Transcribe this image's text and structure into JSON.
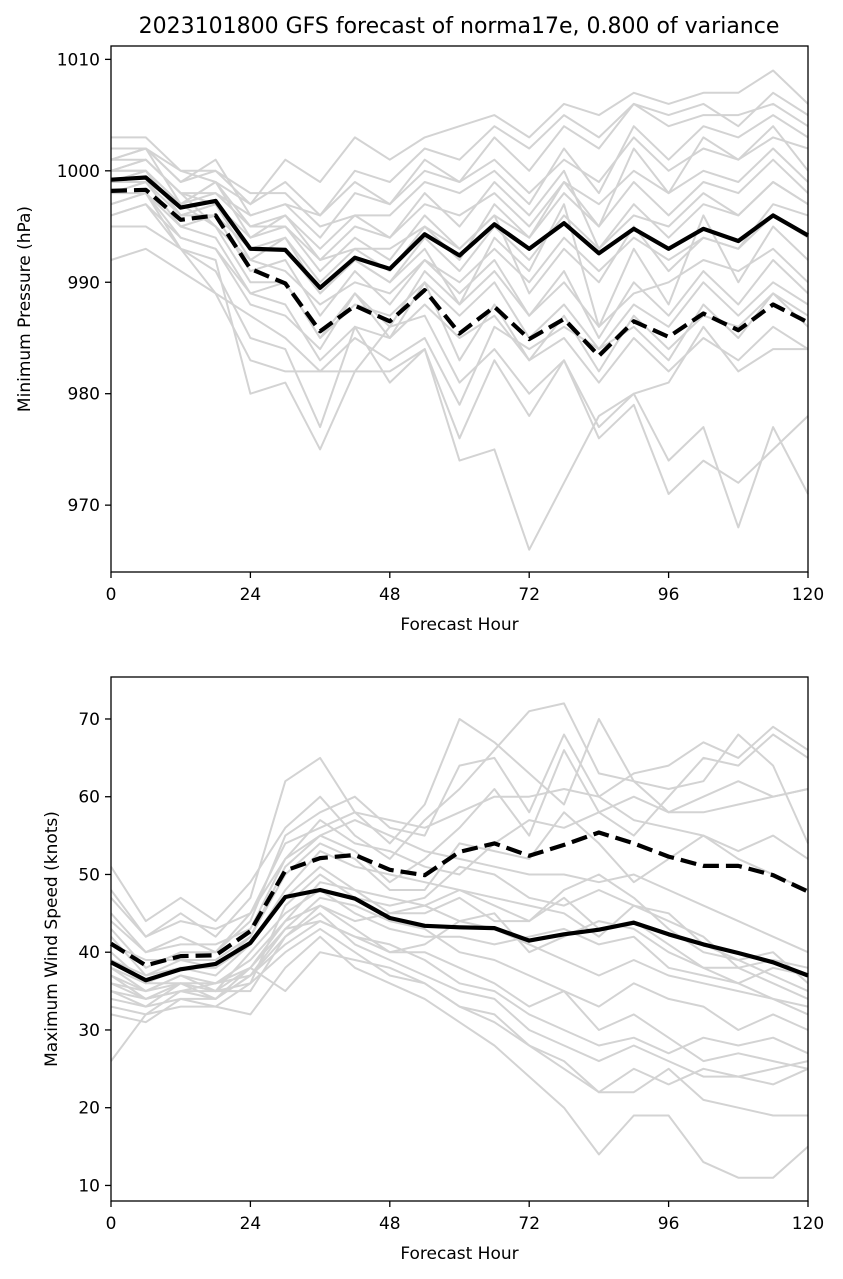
{
  "figure": {
    "title": "2023101800 GFS forecast of norma17e, 0.800 of variance"
  },
  "chart_data": [
    {
      "type": "line",
      "panel": "pressure",
      "title": "2023101800 GFS forecast of norma17e, 0.800 of variance",
      "xlabel": "Forecast Hour",
      "ylabel": "Minimum Pressure (hPa)",
      "xlim": [
        0,
        120
      ],
      "ylim": [
        964,
        1011.2
      ],
      "xticks": [
        0,
        24,
        48,
        72,
        96,
        120
      ],
      "yticks": [
        970,
        980,
        990,
        1000,
        1010
      ],
      "grid": false,
      "x": [
        0,
        6,
        12,
        18,
        24,
        30,
        36,
        42,
        48,
        54,
        60,
        66,
        72,
        78,
        84,
        90,
        96,
        102,
        108,
        114,
        120
      ],
      "ensemble_color": "#d3d3d3",
      "ensemble_members": [
        [
          1003,
          1003,
          1000,
          999,
          997,
          1001,
          999,
          1003,
          1001,
          1003,
          1004,
          1005,
          1003,
          1006,
          1005,
          1007,
          1006,
          1007,
          1007,
          1009,
          1006
        ],
        [
          1002,
          1002,
          999,
          1001,
          996,
          997,
          996,
          999,
          997,
          1000,
          999,
          1001,
          998,
          1001,
          999,
          1003,
          1000,
          1002,
          1001,
          1003,
          1002
        ],
        [
          1001,
          1001,
          998,
          998,
          995,
          995,
          992,
          995,
          994,
          997,
          996,
          998,
          995,
          999,
          997,
          1000,
          998,
          1000,
          999,
          1002,
          999
        ],
        [
          1000,
          1000,
          996,
          997,
          992,
          991,
          988,
          990,
          989,
          992,
          990,
          993,
          990,
          994,
          991,
          994,
          992,
          994,
          993,
          996,
          994
        ],
        [
          999,
          1000,
          997,
          995,
          990,
          990,
          985,
          988,
          987,
          990,
          987,
          990,
          985,
          988,
          984,
          988,
          986,
          990,
          987,
          990,
          988
        ],
        [
          998,
          999,
          995,
          994,
          989,
          988,
          983,
          986,
          985,
          988,
          985,
          987,
          983,
          987,
          982,
          987,
          984,
          987,
          986,
          989,
          987
        ],
        [
          997,
          998,
          993,
          991,
          985,
          984,
          977,
          986,
          981,
          984,
          976,
          983,
          978,
          983,
          977,
          980,
          981,
          986,
          982,
          984,
          984
        ],
        [
          995,
          995,
          993,
          989,
          983,
          982,
          982,
          985,
          983,
          985,
          979,
          986,
          984,
          986,
          984,
          986,
          983,
          988,
          985,
          989,
          986
        ],
        [
          996,
          997,
          993,
          992,
          980,
          981,
          975,
          982,
          982,
          984,
          974,
          975,
          966,
          972,
          978,
          980,
          974,
          977,
          968,
          977,
          971
        ],
        [
          992,
          993,
          991,
          989,
          987,
          985,
          982,
          982,
          986,
          987,
          981,
          984,
          980,
          983,
          976,
          979,
          971,
          974,
          972,
          975,
          978
        ],
        [
          1000,
          1001,
          998,
          995,
          992,
          994,
          989,
          992,
          990,
          993,
          988,
          994,
          991,
          997,
          986,
          993,
          988,
          996,
          990,
          995,
          992
        ],
        [
          1001,
          1002,
          997,
          999,
          995,
          996,
          992,
          993,
          993,
          995,
          993,
          996,
          989,
          993,
          990,
          995,
          991,
          994,
          993,
          997,
          996
        ],
        [
          1002,
          1002,
          1000,
          1000,
          998,
          998,
          995,
          996,
          996,
          999,
          998,
          1000,
          997,
          1002,
          998,
          1004,
          1001,
          1004,
          1003,
          1005,
          1003
        ],
        [
          998,
          999,
          996,
          997,
          993,
          994,
          990,
          993,
          991,
          995,
          992,
          997,
          994,
          999,
          995,
          1002,
          998,
          1003,
          1001,
          1004,
          1000
        ],
        [
          999,
          999,
          997,
          999,
          994,
          996,
          993,
          996,
          994,
          998,
          995,
          999,
          996,
          1000,
          993,
          996,
          995,
          998,
          996,
          999,
          997
        ],
        [
          997,
          998,
          994,
          993,
          988,
          987,
          984,
          989,
          985,
          990,
          983,
          988,
          983,
          985,
          981,
          985,
          982,
          985,
          983,
          986,
          984
        ],
        [
          1000,
          1000,
          997,
          998,
          996,
          997,
          994,
          998,
          997,
          1001,
          999,
          1003,
          1000,
          1004,
          1002,
          1006,
          1005,
          1006,
          1004,
          1007,
          1005
        ],
        [
          1001,
          1002,
          999,
          1000,
          997,
          999,
          996,
          1000,
          999,
          1002,
          1001,
          1004,
          1002,
          1005,
          1003,
          1006,
          1004,
          1005,
          1005,
          1006,
          1004
        ],
        [
          998,
          998,
          995,
          996,
          991,
          992,
          987,
          991,
          988,
          992,
          989,
          992,
          987,
          991,
          985,
          990,
          987,
          991,
          988,
          992,
          989
        ],
        [
          999,
          1000,
          996,
          996,
          993,
          993,
          989,
          992,
          990,
          994,
          991,
          995,
          992,
          996,
          993,
          997,
          994,
          997,
          996,
          999,
          997
        ],
        [
          1000,
          1001,
          998,
          997,
          994,
          995,
          991,
          994,
          992,
          996,
          993,
          996,
          994,
          998,
          995,
          999,
          996,
          999,
          998,
          1001,
          998
        ],
        [
          996,
          997,
          994,
          993,
          989,
          990,
          985,
          989,
          986,
          991,
          988,
          991,
          987,
          990,
          986,
          989,
          990,
          992,
          991,
          993,
          990
        ]
      ],
      "series": [
        {
          "style": "solid",
          "color": "#000000",
          "values": [
            999.2,
            999.4,
            996.7,
            997.3,
            993.0,
            992.9,
            989.5,
            992.2,
            991.2,
            994.3,
            992.4,
            995.2,
            993.0,
            995.3,
            992.6,
            994.8,
            993.0,
            994.8,
            993.7,
            996.0,
            994.2
          ]
        },
        {
          "style": "dashed",
          "color": "#000000",
          "values": [
            998.2,
            998.3,
            995.6,
            996.0,
            991.2,
            989.9,
            985.6,
            987.9,
            986.5,
            989.3,
            985.4,
            987.8,
            984.9,
            986.7,
            983.4,
            986.5,
            985.1,
            987.2,
            985.7,
            988.0,
            986.4
          ]
        }
      ]
    },
    {
      "type": "line",
      "panel": "wind",
      "title": "",
      "xlabel": "Forecast Hour",
      "ylabel": "Maximum Wind Speed (knots)",
      "xlim": [
        0,
        120
      ],
      "ylim": [
        8,
        75.4
      ],
      "xticks": [
        0,
        24,
        48,
        72,
        96,
        120
      ],
      "yticks": [
        10,
        20,
        30,
        40,
        50,
        60,
        70
      ],
      "grid": false,
      "x": [
        0,
        6,
        12,
        18,
        24,
        30,
        36,
        42,
        48,
        54,
        60,
        66,
        72,
        78,
        84,
        90,
        96,
        102,
        108,
        114,
        120
      ],
      "ensemble_color": "#d3d3d3",
      "ensemble_members": [
        [
          51,
          44,
          47,
          44,
          49,
          56,
          60,
          55,
          52,
          57,
          61,
          66,
          71,
          72,
          63,
          62,
          61,
          62,
          68,
          64,
          54
        ],
        [
          48,
          42,
          45,
          42,
          47,
          62,
          65,
          58,
          54,
          59,
          70,
          67,
          63,
          59,
          70,
          62,
          58,
          60,
          62,
          60,
          61
        ],
        [
          45,
          40,
          42,
          40,
          44,
          55,
          58,
          60,
          56,
          55,
          64,
          65,
          58,
          68,
          60,
          63,
          64,
          67,
          65,
          69,
          66
        ],
        [
          43,
          38,
          40,
          40,
          45,
          52,
          55,
          53,
          49,
          52,
          56,
          61,
          55,
          66,
          58,
          55,
          60,
          65,
          64,
          68,
          65
        ],
        [
          42,
          37,
          39,
          38,
          42,
          50,
          54,
          52,
          48,
          48,
          54,
          53,
          52,
          58,
          54,
          49,
          52,
          55,
          53,
          55,
          52
        ],
        [
          40,
          36,
          38,
          37,
          41,
          47,
          51,
          48,
          45,
          45,
          47,
          44,
          44,
          47,
          43,
          44,
          41,
          38,
          38,
          39,
          38
        ],
        [
          38,
          35,
          37,
          35,
          40,
          45,
          48,
          45,
          43,
          42,
          42,
          41,
          42,
          43,
          41,
          42,
          38,
          37,
          36,
          34,
          32
        ],
        [
          37,
          34,
          36,
          34,
          38,
          44,
          46,
          43,
          40,
          40,
          38,
          36,
          33,
          35,
          30,
          32,
          29,
          26,
          27,
          26,
          25
        ],
        [
          36,
          34,
          35,
          34,
          37,
          42,
          45,
          41,
          39,
          37,
          35,
          34,
          30,
          28,
          26,
          28,
          26,
          24,
          24,
          25,
          26
        ],
        [
          35,
          33,
          34,
          33,
          36,
          40,
          43,
          40,
          37,
          36,
          33,
          31,
          28,
          26,
          22,
          22,
          25,
          21,
          20,
          19,
          19
        ],
        [
          33,
          32,
          33,
          33,
          32,
          38,
          42,
          38,
          36,
          34,
          31,
          28,
          24,
          20,
          14,
          19,
          19,
          13,
          11,
          11,
          15
        ],
        [
          26,
          32,
          35,
          36,
          38,
          35,
          40,
          39,
          38,
          36,
          33,
          32,
          28,
          25,
          22,
          25,
          23,
          25,
          24,
          23,
          25
        ],
        [
          32,
          31,
          34,
          34,
          37,
          41,
          44,
          42,
          41,
          39,
          36,
          35,
          32,
          30,
          28,
          29,
          27,
          29,
          28,
          29,
          27
        ],
        [
          34,
          33,
          36,
          35,
          38,
          43,
          47,
          46,
          44,
          43,
          40,
          39,
          37,
          35,
          33,
          36,
          34,
          33,
          30,
          32,
          30
        ],
        [
          36,
          35,
          37,
          36,
          39,
          44,
          49,
          48,
          47,
          46,
          44,
          43,
          41,
          39,
          37,
          39,
          37,
          36,
          35,
          34,
          33
        ],
        [
          39,
          37,
          38,
          38,
          41,
          48,
          53,
          51,
          50,
          49,
          48,
          47,
          46,
          45,
          42,
          46,
          45,
          41,
          39,
          40,
          36
        ],
        [
          41,
          39,
          39,
          39,
          42,
          51,
          55,
          57,
          55,
          53,
          52,
          51,
          50,
          50,
          49,
          50,
          48,
          46,
          44,
          42,
          40
        ],
        [
          44,
          40,
          41,
          41,
          43,
          52,
          57,
          54,
          53,
          51,
          50,
          54,
          57,
          56,
          58,
          60,
          58,
          58,
          59,
          60,
          61
        ],
        [
          47,
          42,
          44,
          43,
          45,
          54,
          56,
          58,
          57,
          56,
          58,
          60,
          60,
          61,
          60,
          57,
          56,
          55,
          52,
          50,
          48
        ],
        [
          38,
          36,
          36,
          35,
          36,
          46,
          50,
          47,
          46,
          47,
          51,
          50,
          47,
          46,
          48,
          46,
          44,
          42,
          38,
          36,
          34
        ],
        [
          35,
          34,
          35,
          35,
          35,
          42,
          46,
          44,
          45,
          46,
          48,
          46,
          44,
          48,
          50,
          47,
          43,
          40,
          39,
          37,
          35
        ],
        [
          37,
          35,
          36,
          36,
          37,
          43,
          44,
          42,
          40,
          41,
          44,
          45,
          40,
          42,
          44,
          43,
          40,
          38,
          36,
          38,
          37
        ]
      ],
      "series": [
        {
          "style": "solid",
          "color": "#000000",
          "values": [
            38.7,
            36.4,
            37.8,
            38.5,
            41.2,
            47.1,
            48.0,
            46.9,
            44.4,
            43.4,
            43.2,
            43.1,
            41.5,
            42.3,
            42.9,
            43.8,
            42.3,
            41.0,
            39.9,
            38.7,
            37.0
          ]
        },
        {
          "style": "dashed",
          "color": "#000000",
          "values": [
            41.1,
            38.3,
            39.5,
            39.6,
            42.7,
            50.5,
            52.1,
            52.5,
            50.6,
            49.9,
            52.9,
            54.0,
            52.4,
            53.8,
            55.4,
            54.0,
            52.3,
            51.1,
            51.1,
            49.9,
            47.8
          ]
        }
      ]
    }
  ]
}
